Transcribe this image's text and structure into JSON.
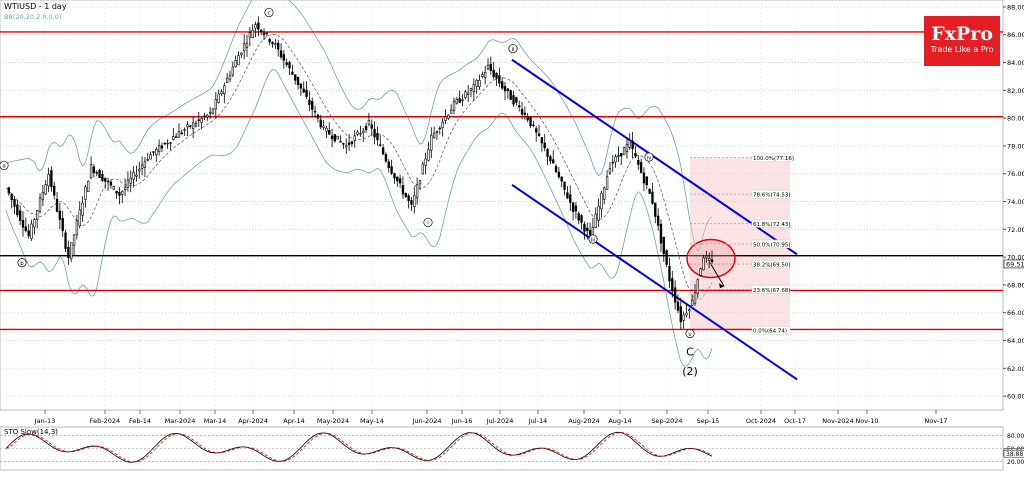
{
  "chart_data": {
    "type": "candlestick",
    "title": "WTIUSD - 1 day",
    "indicator_label": "BB(20,20,2.0,0,0)",
    "y_ticks": [
      60,
      62,
      64,
      66,
      68,
      70,
      72,
      74,
      76,
      78,
      80,
      82,
      84,
      86,
      88
    ],
    "ylim": [
      59,
      88.5
    ],
    "x_ticks": [
      "Jan-13",
      "Feb-2024",
      "Feb-14",
      "Mar-2024",
      "Mar-14",
      "Apr-2024",
      "Apr-14",
      "May-2024",
      "May-14",
      "Jun-2024",
      "Jun-16",
      "Jul-2024",
      "Jul-14",
      "Aug-2024",
      "Aug-14",
      "Sep-2024",
      "Sep-15",
      "Oct-2024",
      "Oct-17",
      "Nov-2024",
      "Nov-10",
      "Nov-17"
    ],
    "current_price_label": "69.51",
    "current_price": 69.51,
    "horizontal_levels": [
      86.2,
      80.1,
      70.1,
      67.6,
      64.8
    ],
    "fib_levels": [
      {
        "label": "100.0%(77.16)",
        "value": 77.16
      },
      {
        "label": "78.6%(74.53)",
        "value": 74.53
      },
      {
        "label": "61.8%(72.43)",
        "value": 72.43
      },
      {
        "label": "50.0%(70.95)",
        "value": 70.95
      },
      {
        "label": "38.2%(69.50)",
        "value": 69.5
      },
      {
        "label": "23.6%(67.68)",
        "value": 67.68
      },
      {
        "label": "0.0%(64.74)",
        "value": 64.74
      }
    ],
    "wave_labels": [
      "a",
      "b",
      "c",
      "i",
      "ii",
      "iii",
      "iv",
      "v",
      "C",
      "(2)"
    ],
    "stochastic": {
      "label": "STO Slow(14,3)",
      "y_ticks": [
        "80.00",
        "50.00",
        "20.00"
      ],
      "current_labels": [
        "39.59",
        "38.88"
      ]
    },
    "grid": true,
    "legend": "none"
  },
  "logo": {
    "brand": "FxPro",
    "tagline": "Trade Like a Pro"
  }
}
